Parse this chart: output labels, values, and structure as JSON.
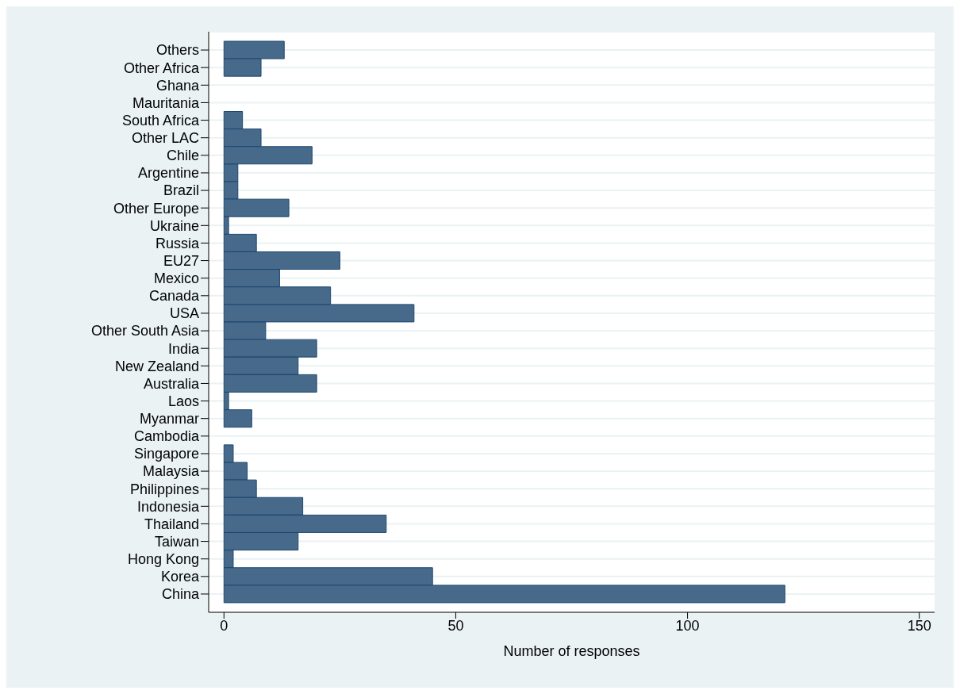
{
  "chart_data": {
    "type": "bar",
    "orientation": "horizontal",
    "xlabel": "Number of responses",
    "categories": [
      "Others",
      "Other Africa",
      "Ghana",
      "Mauritania",
      "South Africa",
      "Other LAC",
      "Chile",
      "Argentine",
      "Brazil",
      "Other Europe",
      "Ukraine",
      "Russia",
      "EU27",
      "Mexico",
      "Canada",
      "USA",
      "Other South Asia",
      "India",
      "New Zealand",
      "Australia",
      "Laos",
      "Myanmar",
      "Cambodia",
      "Singapore",
      "Malaysia",
      "Philippines",
      "Indonesia",
      "Thailand",
      "Taiwan",
      "Hong Kong",
      "Korea",
      "China"
    ],
    "values": [
      13,
      8,
      0,
      0,
      4,
      8,
      19,
      3,
      3,
      14,
      1,
      7,
      25,
      12,
      23,
      41,
      9,
      20,
      16,
      20,
      1,
      6,
      0,
      2,
      5,
      7,
      17,
      35,
      16,
      2,
      45,
      121
    ],
    "color": "#476a8a",
    "xlim": [
      -3.3,
      153.3
    ],
    "xticks": [
      0,
      50,
      100,
      150
    ],
    "grid": "y"
  }
}
